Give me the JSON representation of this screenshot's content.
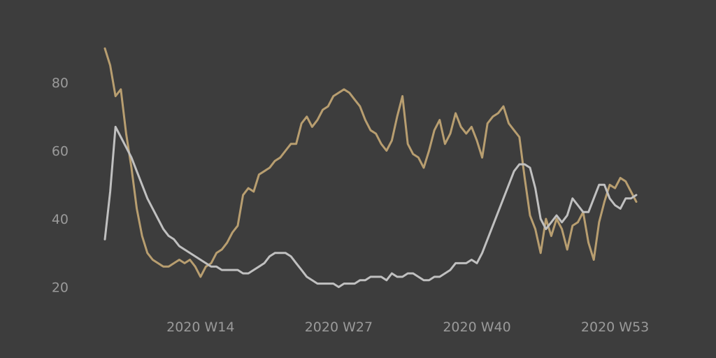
{
  "chart_data": {
    "type": "line",
    "title": "",
    "xlabel": "",
    "ylabel": "",
    "grid": false,
    "legend": "none",
    "ylim": [
      16,
      96
    ],
    "xlim": [
      5,
      55
    ],
    "y_ticks": [
      {
        "value": 20,
        "label": "20"
      },
      {
        "value": 40,
        "label": "40"
      },
      {
        "value": 60,
        "label": "60"
      },
      {
        "value": 80,
        "label": "80"
      }
    ],
    "x_ticks": [
      {
        "value": 14,
        "label": "2020 W14"
      },
      {
        "value": 27,
        "label": "2020 W27"
      },
      {
        "value": 40,
        "label": "2020 W40"
      },
      {
        "value": 53,
        "label": "2020 W53"
      }
    ],
    "series": [
      {
        "color": "#b89e70",
        "x": [
          5,
          5.5,
          6,
          6.5,
          7,
          7.5,
          8,
          8.5,
          9,
          9.5,
          10,
          10.5,
          11,
          11.5,
          12,
          12.5,
          13,
          13.5,
          14,
          14.5,
          15,
          15.5,
          16,
          16.5,
          17,
          17.5,
          18,
          18.5,
          19,
          19.5,
          20,
          20.5,
          21,
          21.5,
          22,
          22.5,
          23,
          23.5,
          24,
          24.5,
          25,
          25.5,
          26,
          26.5,
          27,
          27.5,
          28,
          28.5,
          29,
          29.5,
          30,
          30.5,
          31,
          31.5,
          32,
          32.5,
          33,
          33.5,
          34,
          34.5,
          35,
          35.5,
          36,
          36.5,
          37,
          37.5,
          38,
          38.5,
          39,
          39.5,
          40,
          40.5,
          41,
          41.5,
          42,
          42.5,
          43,
          43.5,
          44,
          44.5,
          45,
          45.5,
          46,
          46.5,
          47,
          47.5,
          48,
          48.5,
          49,
          49.5,
          50,
          50.5,
          51,
          51.5,
          52,
          52.5,
          53,
          53.5,
          54,
          54.5,
          55
        ],
        "values": [
          90,
          85,
          76,
          78,
          65,
          55,
          43,
          35,
          30,
          28,
          27,
          26,
          26,
          27,
          28,
          27,
          28,
          26,
          23,
          26,
          27,
          30,
          31,
          33,
          36,
          38,
          47,
          49,
          48,
          53,
          54,
          55,
          57,
          58,
          60,
          62,
          62,
          68,
          70,
          67,
          69,
          72,
          73,
          76,
          77,
          78,
          77,
          75,
          73,
          69,
          66,
          65,
          62,
          60,
          63,
          70,
          76,
          62,
          59,
          58,
          55,
          60,
          66,
          69,
          62,
          65,
          71,
          67,
          65,
          67,
          63,
          58,
          68,
          70,
          71,
          73,
          68,
          66,
          64,
          52,
          41,
          37,
          30,
          40,
          35,
          40,
          37,
          31,
          38,
          39,
          42,
          33,
          28,
          39,
          45,
          50,
          49,
          52,
          51,
          48,
          45
        ]
      },
      {
        "color": "#c0c0c0",
        "x": [
          5,
          5.5,
          6,
          6.5,
          7,
          7.5,
          8,
          8.5,
          9,
          9.5,
          10,
          10.5,
          11,
          11.5,
          12,
          12.5,
          13,
          13.5,
          14,
          14.5,
          15,
          15.5,
          16,
          16.5,
          17,
          17.5,
          18,
          18.5,
          19,
          19.5,
          20,
          20.5,
          21,
          21.5,
          22,
          22.5,
          23,
          23.5,
          24,
          24.5,
          25,
          25.5,
          26,
          26.5,
          27,
          27.5,
          28,
          28.5,
          29,
          29.5,
          30,
          30.5,
          31,
          31.5,
          32,
          32.5,
          33,
          33.5,
          34,
          34.5,
          35,
          35.5,
          36,
          36.5,
          37,
          37.5,
          38,
          38.5,
          39,
          39.5,
          40,
          40.5,
          41,
          41.5,
          42,
          42.5,
          43,
          43.5,
          44,
          44.5,
          45,
          45.5,
          46,
          46.5,
          47,
          47.5,
          48,
          48.5,
          49,
          49.5,
          50,
          50.5,
          51,
          51.5,
          52,
          52.5,
          53,
          53.5,
          54,
          54.5,
          55
        ],
        "values": [
          34,
          48,
          67,
          64,
          61,
          58,
          54,
          50,
          46,
          43,
          40,
          37,
          35,
          34,
          32,
          31,
          30,
          29,
          28,
          27,
          26,
          26,
          25,
          25,
          25,
          25,
          24,
          24,
          25,
          26,
          27,
          29,
          30,
          30,
          30,
          29,
          27,
          25,
          23,
          22,
          21,
          21,
          21,
          21,
          20,
          21,
          21,
          21,
          22,
          22,
          23,
          23,
          23,
          22,
          24,
          23,
          23,
          24,
          24,
          23,
          22,
          22,
          23,
          23,
          24,
          25,
          27,
          27,
          27,
          28,
          27,
          30,
          34,
          38,
          42,
          46,
          50,
          54,
          56,
          56,
          55,
          49,
          40,
          37,
          39,
          41,
          39,
          41,
          46,
          44,
          42,
          42,
          46,
          50,
          50,
          46,
          44,
          43,
          46,
          46,
          47
        ]
      }
    ]
  }
}
